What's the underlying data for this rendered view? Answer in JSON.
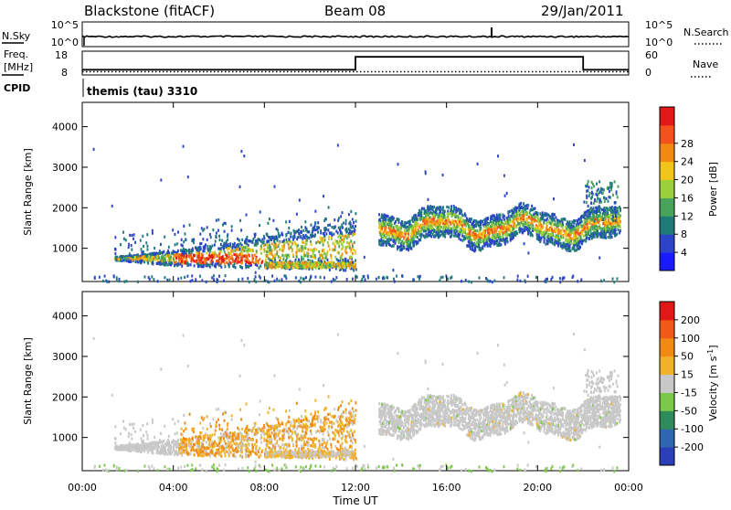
{
  "header": {
    "title": "Blackstone (fitACF)",
    "beam": "Beam 08",
    "date": "29/Jan/2011"
  },
  "status_panels": {
    "nsky": {
      "label": "N.Sky",
      "ticks_left": [
        "10^5",
        "10^0"
      ],
      "ticks_right": [
        "10^5",
        "10^0"
      ],
      "right_label": "N.Search"
    },
    "freq": {
      "label_line1": "Freq.",
      "label_line2": "[MHz]",
      "ticks_left": [
        "18",
        "8"
      ],
      "ticks_right": [
        "60",
        "0"
      ],
      "right_label": "Nave",
      "freq_series": [
        {
          "t": 0.0,
          "v": 10.2
        },
        {
          "t": 12.0,
          "v": 10.2
        },
        {
          "t": 12.0,
          "v": 15.6
        },
        {
          "t": 22.0,
          "v": 15.6
        },
        {
          "t": 22.0,
          "v": 10.2
        },
        {
          "t": 24.0,
          "v": 10.2
        }
      ],
      "nave_level": 8
    },
    "cpid": {
      "label": "CPID",
      "program": "themis (tau) 3310"
    }
  },
  "chart_data": [
    {
      "type": "heatmap",
      "name": "power",
      "ylabel": "Slant Range [km]",
      "yticks": [
        1000,
        2000,
        3000,
        4000
      ],
      "ylim": [
        180,
        4600
      ],
      "xlim": [
        0,
        24
      ],
      "colorbar_label": "Power [dB]",
      "colorbar_ticks": [
        "4",
        "8",
        "12",
        "16",
        "20",
        "24",
        "28"
      ],
      "colorbar_colors": [
        "#1a1aff",
        "#2b44c8",
        "#1f7a7a",
        "#4aa35a",
        "#9ad03c",
        "#f2c51c",
        "#f08a12",
        "#f2521e",
        "#e01818"
      ]
    },
    {
      "type": "heatmap",
      "name": "velocity",
      "ylabel": "Slant Range [km]",
      "yticks": [
        1000,
        2000,
        3000,
        4000
      ],
      "ylim": [
        180,
        4600
      ],
      "xlim": [
        0,
        24
      ],
      "xticks": [
        "00:00",
        "04:00",
        "08:00",
        "12:00",
        "16:00",
        "20:00",
        "00:00"
      ],
      "xlabel": "Time UT",
      "colorbar_label_main": "Velocity [m s",
      "colorbar_label_sup": "-1",
      "colorbar_label_end": "]",
      "colorbar_ticks": [
        "200",
        "100",
        "50",
        "15",
        "-15",
        "-50",
        "-100",
        "-200"
      ],
      "colorbar_colors": [
        "#2b3fb8",
        "#2f66b0",
        "#2f8a5c",
        "#7cc84a",
        "#c8c8c8",
        "#f0b22a",
        "#f08a12",
        "#ef5a18",
        "#e01818"
      ]
    }
  ]
}
